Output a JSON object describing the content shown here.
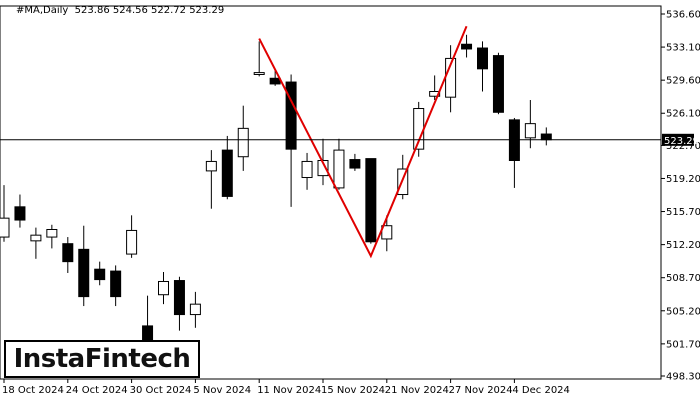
{
  "chart_data": {
    "type": "candlestick",
    "title": "#MA,Daily  523.86 524.56 522.72 523.29",
    "current_price": "523.29",
    "y_ticks": [
      "536.60",
      "533.10",
      "529.60",
      "526.10",
      "522.70",
      "519.20",
      "515.70",
      "512.20",
      "508.70",
      "505.20",
      "501.70",
      "498.30"
    ],
    "ylim": [
      498.3,
      536.6
    ],
    "x_ticks": [
      {
        "index": 0,
        "label": "18 Oct 2024"
      },
      {
        "index": 4,
        "label": "24 Oct 2024"
      },
      {
        "index": 8,
        "label": "30 Oct 2024"
      },
      {
        "index": 12,
        "label": "5 Nov 2024"
      },
      {
        "index": 16,
        "label": "11 Nov 2024"
      },
      {
        "index": 20,
        "label": "15 Nov 2024"
      },
      {
        "index": 24,
        "label": "21 Nov 2024"
      },
      {
        "index": 28,
        "label": "27 Nov 2024"
      },
      {
        "index": 32,
        "label": "4 Dec 2024"
      }
    ],
    "candles": [
      {
        "o": 513.0,
        "h": 518.5,
        "l": 512.5,
        "c": 515.0
      },
      {
        "o": 516.2,
        "h": 517.5,
        "l": 514.0,
        "c": 514.8
      },
      {
        "o": 512.6,
        "h": 514.0,
        "l": 510.7,
        "c": 513.2
      },
      {
        "o": 513.0,
        "h": 514.3,
        "l": 511.8,
        "c": 513.8
      },
      {
        "o": 512.3,
        "h": 513.0,
        "l": 509.2,
        "c": 510.4
      },
      {
        "o": 511.7,
        "h": 514.2,
        "l": 505.7,
        "c": 506.7
      },
      {
        "o": 509.6,
        "h": 510.4,
        "l": 507.9,
        "c": 508.5
      },
      {
        "o": 509.4,
        "h": 510.0,
        "l": 505.7,
        "c": 506.7
      },
      {
        "o": 511.2,
        "h": 515.3,
        "l": 510.8,
        "c": 513.7
      },
      {
        "o": 503.6,
        "h": 506.8,
        "l": 500.6,
        "c": 501.8
      },
      {
        "o": 506.9,
        "h": 509.3,
        "l": 505.9,
        "c": 508.3
      },
      {
        "o": 508.4,
        "h": 508.8,
        "l": 503.1,
        "c": 504.8
      },
      {
        "o": 504.8,
        "h": 507.2,
        "l": 503.4,
        "c": 505.9
      },
      {
        "o": 520.0,
        "h": 522.2,
        "l": 516.0,
        "c": 521.0
      },
      {
        "o": 522.2,
        "h": 523.7,
        "l": 517.0,
        "c": 517.3
      },
      {
        "o": 521.5,
        "h": 526.9,
        "l": 520.0,
        "c": 524.5
      },
      {
        "o": 530.2,
        "h": 533.7,
        "l": 530.0,
        "c": 530.4
      },
      {
        "o": 529.8,
        "h": 530.7,
        "l": 529.0,
        "c": 529.2
      },
      {
        "o": 529.4,
        "h": 530.2,
        "l": 516.2,
        "c": 522.3
      },
      {
        "o": 519.3,
        "h": 521.9,
        "l": 518.0,
        "c": 521.0
      },
      {
        "o": 519.5,
        "h": 523.4,
        "l": 518.5,
        "c": 521.1
      },
      {
        "o": 518.2,
        "h": 523.4,
        "l": 518.0,
        "c": 522.2
      },
      {
        "o": 521.2,
        "h": 521.8,
        "l": 520.0,
        "c": 520.3
      },
      {
        "o": 521.3,
        "h": 521.3,
        "l": 512.3,
        "c": 512.5
      },
      {
        "o": 512.8,
        "h": 515.3,
        "l": 511.5,
        "c": 514.2
      },
      {
        "o": 517.5,
        "h": 521.7,
        "l": 517.0,
        "c": 520.2
      },
      {
        "o": 522.3,
        "h": 527.3,
        "l": 521.5,
        "c": 526.6
      },
      {
        "o": 527.9,
        "h": 530.1,
        "l": 527.5,
        "c": 528.4
      },
      {
        "o": 527.8,
        "h": 533.3,
        "l": 526.2,
        "c": 531.9
      },
      {
        "o": 533.4,
        "h": 534.4,
        "l": 532.0,
        "c": 532.9
      },
      {
        "o": 533.0,
        "h": 533.7,
        "l": 528.4,
        "c": 530.8
      },
      {
        "o": 532.2,
        "h": 532.5,
        "l": 526.0,
        "c": 526.2
      },
      {
        "o": 525.4,
        "h": 525.6,
        "l": 518.2,
        "c": 521.1
      },
      {
        "o": 523.5,
        "h": 527.5,
        "l": 522.4,
        "c": 525.0
      },
      {
        "o": 523.9,
        "h": 524.6,
        "l": 522.7,
        "c": 523.3
      }
    ],
    "pattern_line": {
      "color": "#e00000",
      "points": [
        {
          "x": 16.0,
          "y": 534.0
        },
        {
          "x": 23.0,
          "y": 511.0
        },
        {
          "x": 29.0,
          "y": 535.3
        }
      ]
    }
  },
  "logo": {
    "text": "InstaFintech"
  }
}
